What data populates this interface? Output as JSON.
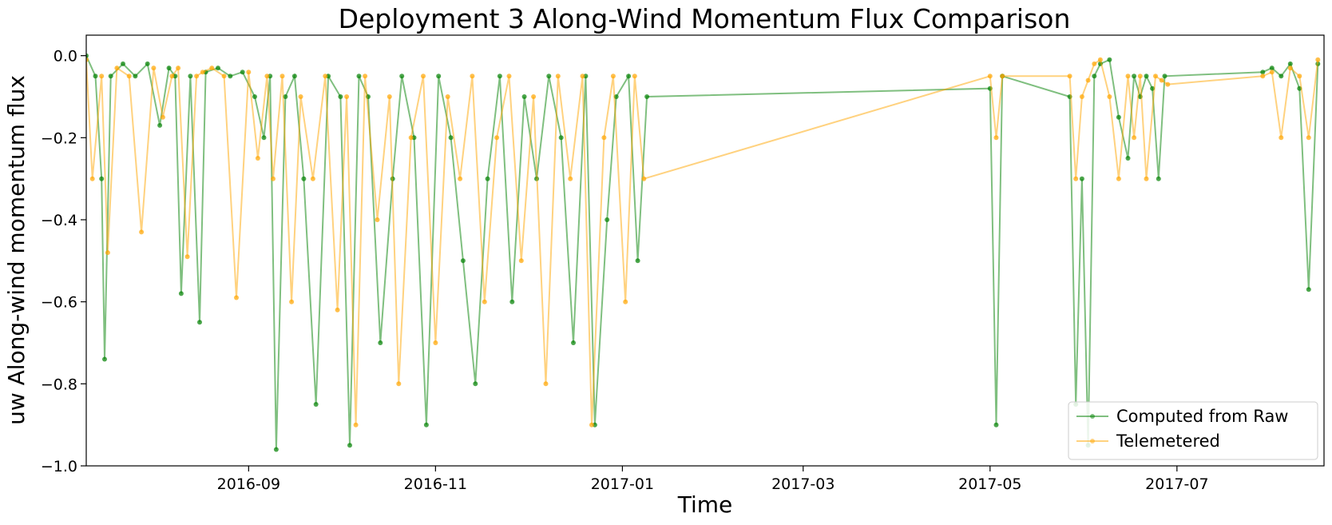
{
  "chart_data": {
    "type": "line",
    "title": "Deployment 3 Along-Wind Momentum Flux Comparison",
    "xlabel": "Time",
    "ylabel": "uw Along-wind momentum flux",
    "xlim": [
      "2016-07-10",
      "2017-08-18"
    ],
    "ylim": [
      -1.0,
      0.05
    ],
    "x_ticks": [
      "2016-09",
      "2016-11",
      "2017-01",
      "2017-03",
      "2017-05",
      "2017-07"
    ],
    "x_tick_dates": [
      "2016-09-01",
      "2016-11-01",
      "2017-01-01",
      "2017-03-01",
      "2017-05-01",
      "2017-07-01"
    ],
    "y_ticks": [
      0.0,
      -0.2,
      -0.4,
      -0.6,
      -0.8,
      -1.0
    ],
    "y_tick_labels": [
      "0.0",
      "−0.2",
      "−0.4",
      "−0.6",
      "−0.8",
      "−1.0"
    ],
    "grid": false,
    "legend_position": "bottom-right",
    "series": [
      {
        "name": "Computed from Raw",
        "color": "#008000",
        "marker": "circle",
        "alpha": 0.5,
        "x": [
          "2016-07-10",
          "2016-07-13",
          "2016-07-15",
          "2016-07-16",
          "2016-07-18",
          "2016-07-22",
          "2016-07-26",
          "2016-07-30",
          "2016-08-03",
          "2016-08-06",
          "2016-08-08",
          "2016-08-10",
          "2016-08-13",
          "2016-08-16",
          "2016-08-18",
          "2016-08-22",
          "2016-08-26",
          "2016-08-30",
          "2016-09-03",
          "2016-09-06",
          "2016-09-08",
          "2016-09-10",
          "2016-09-13",
          "2016-09-16",
          "2016-09-19",
          "2016-09-23",
          "2016-09-27",
          "2016-10-01",
          "2016-10-04",
          "2016-10-07",
          "2016-10-10",
          "2016-10-14",
          "2016-10-18",
          "2016-10-21",
          "2016-10-25",
          "2016-10-29",
          "2016-11-02",
          "2016-11-06",
          "2016-11-10",
          "2016-11-14",
          "2016-11-18",
          "2016-11-22",
          "2016-11-26",
          "2016-11-30",
          "2016-12-04",
          "2016-12-08",
          "2016-12-12",
          "2016-12-16",
          "2016-12-20",
          "2016-12-23",
          "2016-12-27",
          "2016-12-30",
          "2017-01-03",
          "2017-01-06",
          "2017-01-09",
          "2017-05-01",
          "2017-05-03",
          "2017-05-05",
          "2017-05-27",
          "2017-05-29",
          "2017-05-31",
          "2017-06-02",
          "2017-06-04",
          "2017-06-06",
          "2017-06-09",
          "2017-06-12",
          "2017-06-15",
          "2017-06-17",
          "2017-06-19",
          "2017-06-21",
          "2017-06-23",
          "2017-06-25",
          "2017-06-27",
          "2017-07-29",
          "2017-08-01",
          "2017-08-04",
          "2017-08-07",
          "2017-08-10",
          "2017-08-13",
          "2017-08-16"
        ],
        "y": [
          0.0,
          -0.05,
          -0.3,
          -0.74,
          -0.05,
          -0.02,
          -0.05,
          -0.02,
          -0.17,
          -0.03,
          -0.05,
          -0.58,
          -0.05,
          -0.65,
          -0.04,
          -0.03,
          -0.05,
          -0.04,
          -0.1,
          -0.2,
          -0.05,
          -0.96,
          -0.1,
          -0.05,
          -0.3,
          -0.85,
          -0.05,
          -0.1,
          -0.95,
          -0.05,
          -0.1,
          -0.7,
          -0.3,
          -0.05,
          -0.2,
          -0.9,
          -0.05,
          -0.2,
          -0.5,
          -0.8,
          -0.3,
          -0.05,
          -0.6,
          -0.1,
          -0.3,
          -0.05,
          -0.2,
          -0.7,
          -0.05,
          -0.9,
          -0.4,
          -0.1,
          -0.05,
          -0.5,
          -0.1,
          -0.08,
          -0.9,
          -0.05,
          -0.1,
          -0.85,
          -0.3,
          -0.95,
          -0.05,
          -0.02,
          -0.01,
          -0.15,
          -0.25,
          -0.05,
          -0.1,
          -0.05,
          -0.08,
          -0.3,
          -0.05,
          -0.04,
          -0.03,
          -0.05,
          -0.02,
          -0.08,
          -0.57,
          -0.02
        ]
      },
      {
        "name": "Telemetered",
        "color": "#ffa500",
        "marker": "circle",
        "alpha": 0.5,
        "x": [
          "2016-07-10",
          "2016-07-12",
          "2016-07-15",
          "2016-07-17",
          "2016-07-20",
          "2016-07-24",
          "2016-07-28",
          "2016-08-01",
          "2016-08-04",
          "2016-08-07",
          "2016-08-09",
          "2016-08-12",
          "2016-08-15",
          "2016-08-17",
          "2016-08-20",
          "2016-08-24",
          "2016-08-28",
          "2016-09-01",
          "2016-09-04",
          "2016-09-07",
          "2016-09-09",
          "2016-09-12",
          "2016-09-15",
          "2016-09-18",
          "2016-09-22",
          "2016-09-26",
          "2016-09-30",
          "2016-10-03",
          "2016-10-06",
          "2016-10-09",
          "2016-10-13",
          "2016-10-17",
          "2016-10-20",
          "2016-10-24",
          "2016-10-28",
          "2016-11-01",
          "2016-11-05",
          "2016-11-09",
          "2016-11-13",
          "2016-11-17",
          "2016-11-21",
          "2016-11-25",
          "2016-11-29",
          "2016-12-03",
          "2016-12-07",
          "2016-12-11",
          "2016-12-15",
          "2016-12-19",
          "2016-12-22",
          "2016-12-26",
          "2016-12-29",
          "2017-01-02",
          "2017-01-05",
          "2017-01-08",
          "2017-05-01",
          "2017-05-03",
          "2017-05-05",
          "2017-05-27",
          "2017-05-29",
          "2017-05-31",
          "2017-06-02",
          "2017-06-04",
          "2017-06-06",
          "2017-06-09",
          "2017-06-12",
          "2017-06-15",
          "2017-06-17",
          "2017-06-19",
          "2017-06-21",
          "2017-06-24",
          "2017-06-26",
          "2017-06-28",
          "2017-07-29",
          "2017-08-01",
          "2017-08-04",
          "2017-08-07",
          "2017-08-10",
          "2017-08-13",
          "2017-08-16"
        ],
        "y": [
          -0.01,
          -0.3,
          -0.05,
          -0.48,
          -0.03,
          -0.05,
          -0.43,
          -0.03,
          -0.15,
          -0.05,
          -0.03,
          -0.49,
          -0.05,
          -0.04,
          -0.03,
          -0.05,
          -0.59,
          -0.04,
          -0.25,
          -0.05,
          -0.3,
          -0.05,
          -0.6,
          -0.1,
          -0.3,
          -0.05,
          -0.62,
          -0.1,
          -0.9,
          -0.05,
          -0.4,
          -0.1,
          -0.8,
          -0.2,
          -0.05,
          -0.7,
          -0.1,
          -0.3,
          -0.05,
          -0.6,
          -0.2,
          -0.05,
          -0.5,
          -0.1,
          -0.8,
          -0.05,
          -0.3,
          -0.05,
          -0.9,
          -0.2,
          -0.05,
          -0.6,
          -0.05,
          -0.3,
          -0.05,
          -0.2,
          -0.05,
          -0.05,
          -0.3,
          -0.1,
          -0.06,
          -0.02,
          -0.01,
          -0.1,
          -0.3,
          -0.05,
          -0.2,
          -0.05,
          -0.3,
          -0.05,
          -0.06,
          -0.07,
          -0.05,
          -0.04,
          -0.2,
          -0.03,
          -0.05,
          -0.2,
          -0.01
        ]
      }
    ]
  }
}
